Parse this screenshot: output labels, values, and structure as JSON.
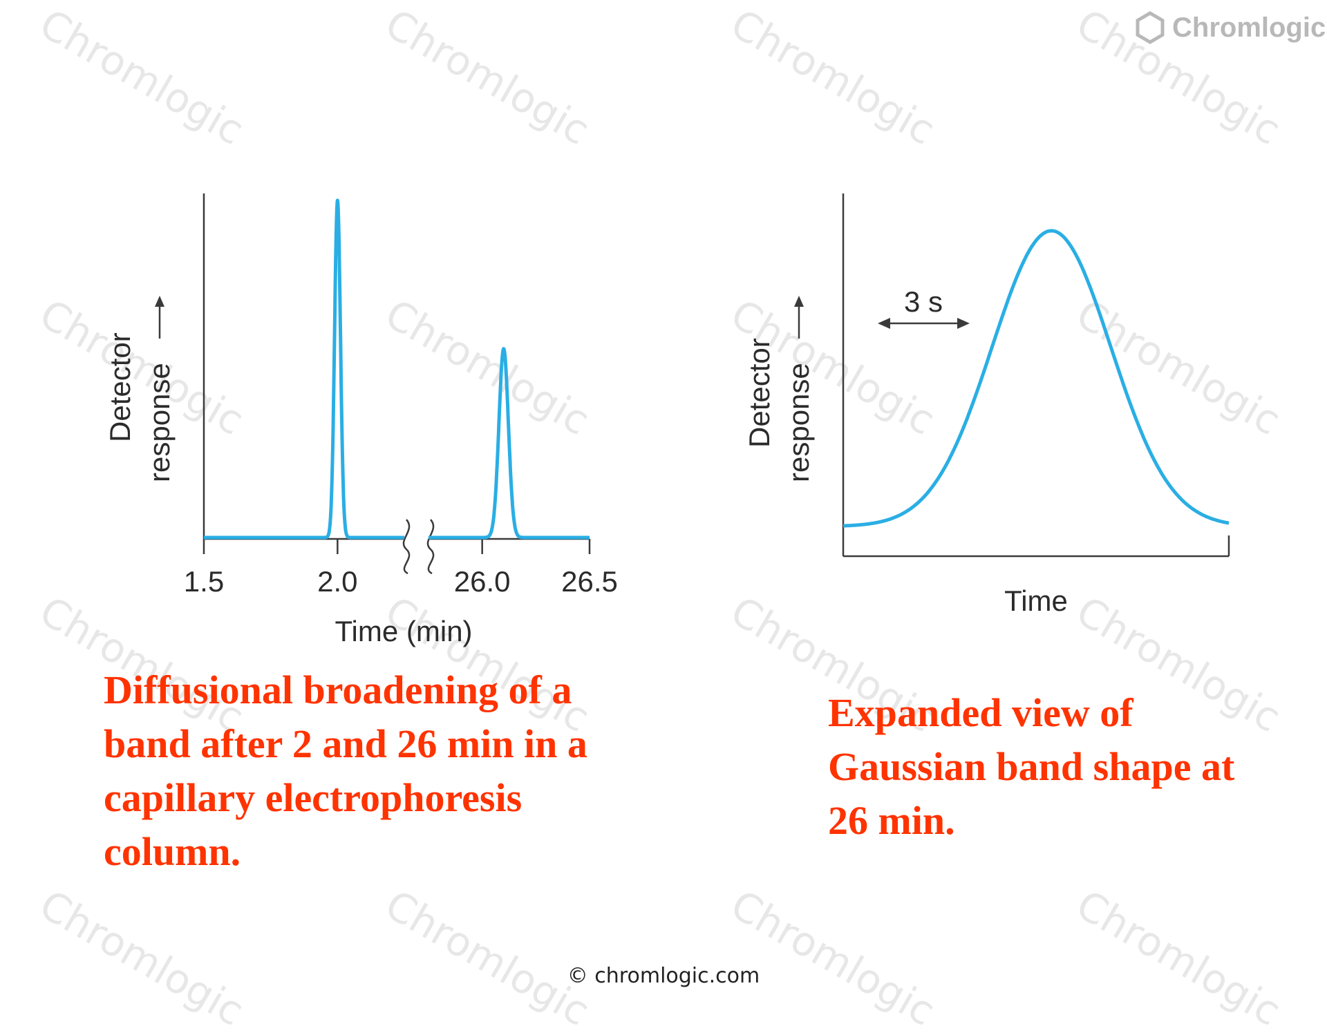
{
  "watermark": {
    "text": "Chromlogic",
    "color": "#e7e7e7"
  },
  "brand": {
    "name": "Chromlogic",
    "icon": "hexagon-logo-icon"
  },
  "chart_data": [
    {
      "type": "line",
      "title": "",
      "xlabel": "Time (min)",
      "ylabel_line1": "Detector",
      "ylabel_line2": "response",
      "ylabel_arrow": "→",
      "xticks": [
        "1.5",
        "2.0",
        "26.0",
        "26.5"
      ],
      "x_segments": [
        [
          1.5,
          2.25
        ],
        [
          25.75,
          26.5
        ]
      ],
      "axis_break": true,
      "series": [
        {
          "color": "#2aaee4",
          "baseline": 0,
          "peaks": [
            {
              "center": 2.0,
              "height": 1.0,
              "sigma": 0.011
            },
            {
              "center": 26.1,
              "height": 0.56,
              "sigma": 0.022
            }
          ]
        }
      ],
      "ylim": [
        0,
        1.07
      ]
    },
    {
      "type": "line",
      "title": "",
      "xlabel": "Time",
      "ylabel_line1": "Detector",
      "ylabel_line2": "response",
      "ylabel_arrow": "→",
      "annotation": {
        "text": "3 s",
        "arrow": "double-headed"
      },
      "series": [
        {
          "color": "#2aaee4",
          "shape": "gaussian",
          "center_fraction": 0.54,
          "height": 1.0,
          "baseline": 0
        }
      ],
      "ylim": [
        0,
        1.05
      ]
    }
  ],
  "captions": {
    "left": "Diffusional broadening of a band after 2 and 26 min in a capillary electrophoresis column.",
    "right": "Expanded view of Gaussian band shape at 26 min."
  },
  "footer": "© chromlogic.com"
}
